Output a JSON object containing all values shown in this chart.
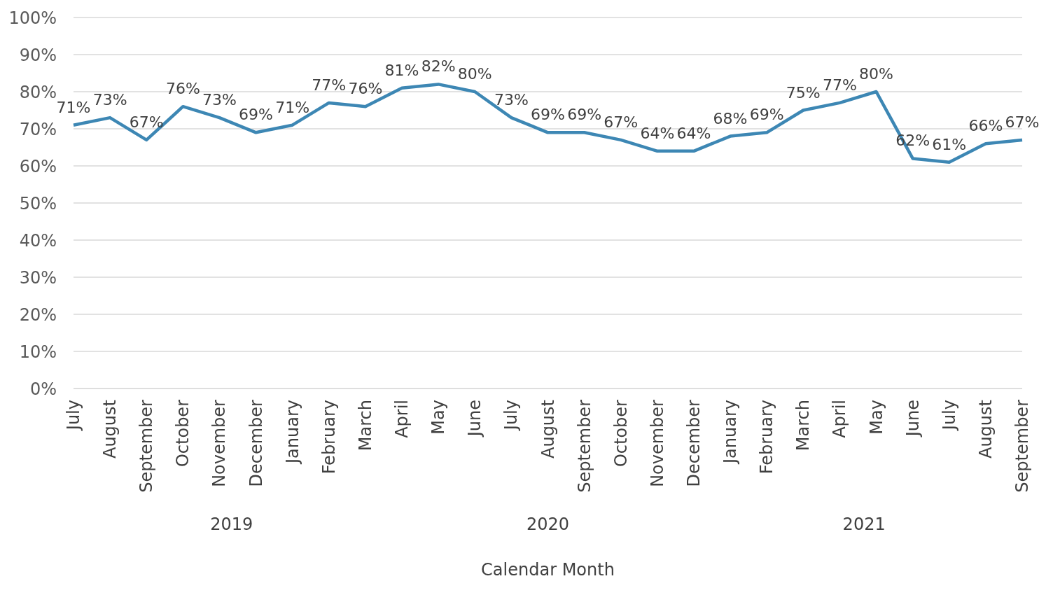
{
  "chart_data": {
    "type": "line",
    "xlabel": "Calendar Month",
    "categories": [
      "July",
      "August",
      "September",
      "October",
      "November",
      "December",
      "January",
      "February",
      "March",
      "April",
      "May",
      "June",
      "July",
      "August",
      "September",
      "October",
      "November",
      "December",
      "January",
      "February",
      "March",
      "April",
      "May",
      "June",
      "July",
      "August",
      "September"
    ],
    "series": [
      {
        "color": "#3d87b4",
        "values": [
          71,
          73,
          67,
          76,
          73,
          69,
          71,
          77,
          76,
          81,
          82,
          80,
          73,
          69,
          69,
          67,
          64,
          64,
          68,
          69,
          75,
          77,
          80,
          62,
          61,
          66,
          67
        ],
        "value_labels": [
          "71%",
          "73%",
          "67%",
          "76%",
          "73%",
          "69%",
          "71%",
          "77%",
          "76%",
          "81%",
          "82%",
          "80%",
          "73%",
          "69%",
          "69%",
          "67%",
          "64%",
          "64%",
          "68%",
          "69%",
          "75%",
          "77%",
          "80%",
          "62%",
          "61%",
          "66%",
          "67%"
        ]
      }
    ],
    "ylim": [
      0,
      100
    ],
    "yticks": [
      {
        "value": 0,
        "label": "0%"
      },
      {
        "value": 10,
        "label": "10%"
      },
      {
        "value": 20,
        "label": "20%"
      },
      {
        "value": 30,
        "label": "30%"
      },
      {
        "value": 40,
        "label": "40%"
      },
      {
        "value": 50,
        "label": "50%"
      },
      {
        "value": 60,
        "label": "60%"
      },
      {
        "value": 70,
        "label": "70%"
      },
      {
        "value": 80,
        "label": "80%"
      },
      {
        "value": 90,
        "label": "90%"
      },
      {
        "value": 100,
        "label": "100%"
      }
    ],
    "annotations": [
      "2019",
      "2020",
      "2021"
    ],
    "grid": "y",
    "legend": false,
    "marker": "none",
    "line_style": "solid"
  }
}
